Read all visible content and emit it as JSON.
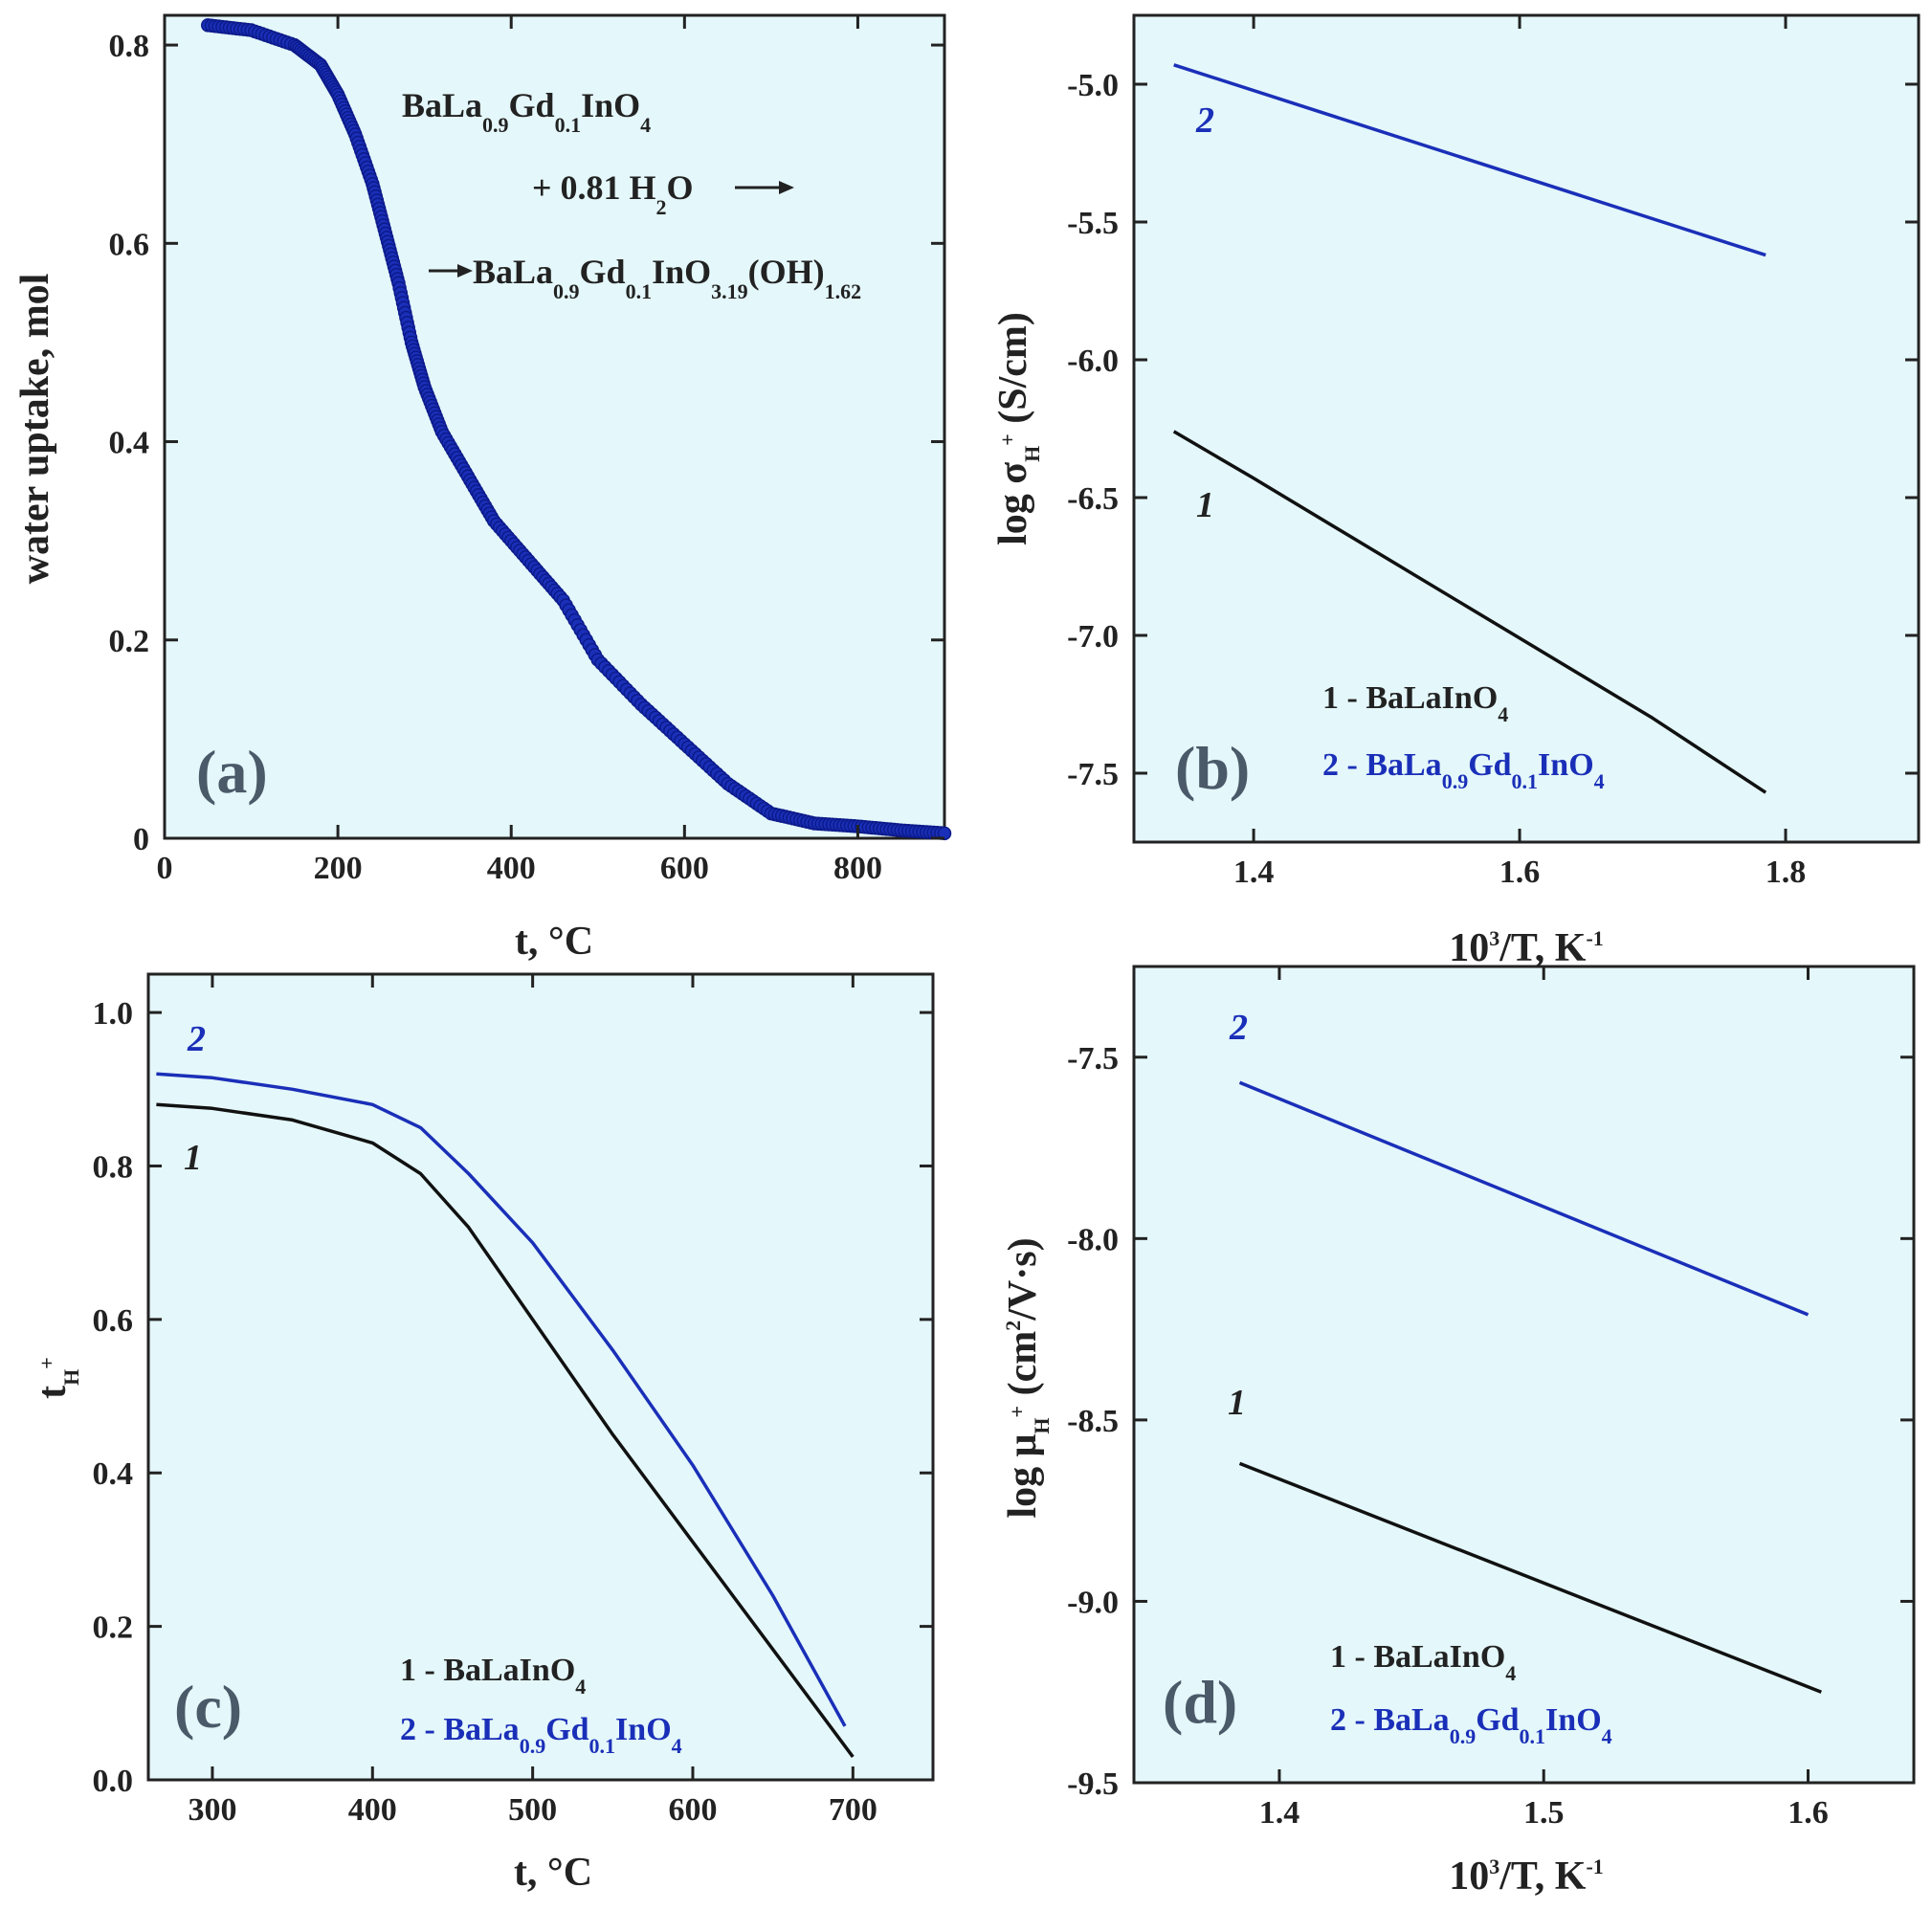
{
  "colors": {
    "plot_background": "#e4f7fa",
    "axis": "#222222",
    "series_1": "#111111",
    "series_2": "#1a2fb8",
    "panel_letter": "#4a5a68"
  },
  "chart_data": [
    {
      "id": "a",
      "type": "scatter",
      "panel_label": "(a)",
      "xlabel": "t, °C",
      "ylabel": "water uptake, mol",
      "xlim": [
        0,
        900
      ],
      "ylim": [
        0,
        0.83
      ],
      "xticks": [
        0,
        200,
        400,
        600,
        800
      ],
      "yticks": [
        0,
        0.2,
        0.4,
        0.6,
        0.8
      ],
      "xtick_labels": [
        "0",
        "200",
        "400",
        "600",
        "800"
      ],
      "ytick_labels": [
        "0",
        "0.2",
        "0.4",
        "0.6",
        "0.8"
      ],
      "annotation": {
        "line1_main": "BaLa",
        "line1_sub1": "0.9",
        "line1_mid": "Gd",
        "line1_sub2": "0.1",
        "line1_end": "InO",
        "line1_sub3": "4",
        "line2_main": "+ 0.81 H",
        "line2_sub": "2",
        "line2_end": "O",
        "line3_main": "BaLa",
        "line3_sub1": "0.9",
        "line3_mid": "Gd",
        "line3_sub2": "0.1",
        "line3_mid2": "InO",
        "line3_sub3": "3.19",
        "line3_end": "(OH)",
        "line3_sub4": "1.62"
      },
      "series": [
        {
          "name": "water uptake",
          "color": "#1a2fb8",
          "x": [
            50,
            100,
            150,
            180,
            200,
            220,
            240,
            255,
            270,
            285,
            300,
            320,
            350,
            380,
            420,
            460,
            500,
            550,
            600,
            650,
            700,
            750,
            800,
            850,
            900
          ],
          "y": [
            0.82,
            0.815,
            0.8,
            0.78,
            0.75,
            0.71,
            0.66,
            0.61,
            0.56,
            0.5,
            0.455,
            0.41,
            0.365,
            0.32,
            0.28,
            0.24,
            0.18,
            0.135,
            0.095,
            0.055,
            0.025,
            0.015,
            0.012,
            0.008,
            0.005
          ]
        }
      ]
    },
    {
      "id": "b",
      "type": "line",
      "panel_label": "(b)",
      "xlabel_main": "10",
      "xlabel_sup": "3",
      "xlabel_end": "/T, K",
      "xlabel_sup2": "-1",
      "ylabel_main": "log σ",
      "ylabel_sub": "H",
      "ylabel_sup": "+",
      "ylabel_end": " (S/cm)",
      "xlim": [
        1.31,
        1.9
      ],
      "ylim": [
        -7.75,
        -4.75
      ],
      "xticks": [
        1.4,
        1.6,
        1.8
      ],
      "yticks": [
        -5.0,
        -5.5,
        -6.0,
        -6.5,
        -7.0,
        -7.5
      ],
      "xtick_labels": [
        "1.4",
        "1.6",
        "1.8"
      ],
      "ytick_labels": [
        "-5.0",
        "-5.5",
        "-6.0",
        "-6.5",
        "-7.0",
        "-7.5"
      ],
      "legend": {
        "item1_main": "1 - BaLaInO",
        "item1_sub": "4",
        "item2_main": "2 - BaLa",
        "item2_sub1": "0.9",
        "item2_mid": "Gd",
        "item2_sub2": "0.1",
        "item2_end": "InO",
        "item2_sub3": "4"
      },
      "curve_labels": [
        "1",
        "2"
      ],
      "series": [
        {
          "name": "1 - BaLaInO4",
          "color": "#111111",
          "x": [
            1.34,
            1.4,
            1.5,
            1.6,
            1.7,
            1.785
          ],
          "y": [
            -6.26,
            -6.43,
            -6.72,
            -7.01,
            -7.3,
            -7.57
          ]
        },
        {
          "name": "2 - BaLa0.9Gd0.1InO4",
          "color": "#1a2fb8",
          "x": [
            1.34,
            1.785
          ],
          "y": [
            -4.93,
            -5.62
          ]
        }
      ]
    },
    {
      "id": "c",
      "type": "line",
      "panel_label": "(c)",
      "xlabel": "t, °C",
      "ylabel_main": "t",
      "ylabel_sub": "H",
      "ylabel_sup": "+",
      "xlim": [
        260,
        750
      ],
      "ylim": [
        0,
        1.05
      ],
      "xticks": [
        300,
        400,
        500,
        600,
        700
      ],
      "yticks": [
        0.0,
        0.2,
        0.4,
        0.6,
        0.8,
        1.0
      ],
      "xtick_labels": [
        "300",
        "400",
        "500",
        "600",
        "700"
      ],
      "ytick_labels": [
        "0.0",
        "0.2",
        "0.4",
        "0.6",
        "0.8",
        "1.0"
      ],
      "legend": {
        "item1_main": "1 - BaLaInO",
        "item1_sub": "4",
        "item2_main": "2 - BaLa",
        "item2_sub1": "0.9",
        "item2_mid": "Gd",
        "item2_sub2": "0.1",
        "item2_end": "InO",
        "item2_sub3": "4"
      },
      "curve_labels": [
        "1",
        "2"
      ],
      "series": [
        {
          "name": "1 - BaLaInO4",
          "color": "#111111",
          "x": [
            265,
            300,
            350,
            400,
            430,
            460,
            500,
            550,
            600,
            650,
            700
          ],
          "y": [
            0.88,
            0.875,
            0.86,
            0.83,
            0.79,
            0.72,
            0.6,
            0.45,
            0.31,
            0.17,
            0.03
          ]
        },
        {
          "name": "2 - BaLa0.9Gd0.1InO4",
          "color": "#1a2fb8",
          "x": [
            265,
            300,
            350,
            400,
            430,
            460,
            500,
            550,
            600,
            650,
            695
          ],
          "y": [
            0.92,
            0.915,
            0.9,
            0.88,
            0.85,
            0.79,
            0.7,
            0.56,
            0.41,
            0.24,
            0.07
          ]
        }
      ]
    },
    {
      "id": "d",
      "type": "line",
      "panel_label": "(d)",
      "xlabel_main": "10",
      "xlabel_sup": "3",
      "xlabel_end": "/T, K",
      "xlabel_sup2": "-1",
      "ylabel_main": "log μ",
      "ylabel_sub": "H",
      "ylabel_sup": "+",
      "ylabel_end": " (cm",
      "ylabel_sup3": "2",
      "ylabel_end2": "/V·s)",
      "xlim": [
        1.345,
        1.64
      ],
      "ylim": [
        -9.5,
        -7.25
      ],
      "xticks": [
        1.4,
        1.5,
        1.6
      ],
      "yticks": [
        -7.5,
        -8.0,
        -8.5,
        -9.0,
        -9.5
      ],
      "xtick_labels": [
        "1.4",
        "1.5",
        "1.6"
      ],
      "ytick_labels": [
        "-7.5",
        "-8.0",
        "-8.5",
        "-9.0",
        "-9.5"
      ],
      "legend": {
        "item1_main": "1 - BaLaInO",
        "item1_sub": "4",
        "item2_main": "2 - BaLa",
        "item2_sub1": "0.9",
        "item2_mid": "Gd",
        "item2_sub2": "0.1",
        "item2_end": "InO",
        "item2_sub3": "4"
      },
      "curve_labels": [
        "1",
        "2"
      ],
      "series": [
        {
          "name": "1 - BaLaInO4",
          "color": "#111111",
          "x": [
            1.385,
            1.605
          ],
          "y": [
            -8.62,
            -9.25
          ]
        },
        {
          "name": "2 - BaLa0.9Gd0.1InO4",
          "color": "#1a2fb8",
          "x": [
            1.385,
            1.6
          ],
          "y": [
            -7.57,
            -8.21
          ]
        }
      ]
    }
  ]
}
